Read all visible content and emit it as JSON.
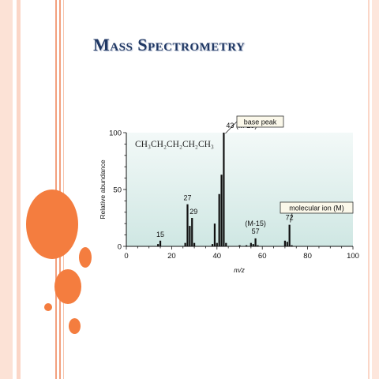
{
  "slide": {
    "title": "Mass Spectrometry",
    "accent_color": "#f47d3f",
    "title_color": "#1f3763"
  },
  "chart_data": {
    "type": "bar",
    "title": "",
    "xlabel": "m/z",
    "ylabel": "Relative abundance",
    "xlim": [
      0,
      100
    ],
    "ylim": [
      0,
      100
    ],
    "x_ticks": [
      0,
      20,
      40,
      60,
      80,
      100
    ],
    "y_ticks": [
      0,
      50,
      100
    ],
    "grid": false,
    "molecule_label": "CH₃CH₂CH₂CH₂CH₃",
    "series": [
      {
        "x": [
          14,
          15,
          26,
          27,
          28,
          29,
          30,
          38,
          39,
          40,
          41,
          42,
          43,
          44,
          50,
          53,
          55,
          56,
          57,
          58,
          70,
          71,
          72,
          73
        ],
        "y": [
          2,
          5,
          3,
          37,
          18,
          25,
          3,
          2,
          20,
          3,
          46,
          63,
          100,
          3,
          1,
          1,
          3,
          2,
          7,
          1,
          5,
          4,
          19,
          1
        ]
      }
    ],
    "peak_labels": [
      {
        "x": 15,
        "y": 5,
        "text": "15"
      },
      {
        "x": 27,
        "y": 37,
        "text": "27"
      },
      {
        "x": 29,
        "y": 25,
        "text": "29"
      },
      {
        "x": 43,
        "y": 100,
        "text": "43 (M-29)"
      },
      {
        "x": 57,
        "y": 7,
        "text": "57"
      },
      {
        "x": 57,
        "y": 7,
        "text": "(M-15)"
      },
      {
        "x": 72,
        "y": 19,
        "text": "72"
      }
    ],
    "callouts": [
      {
        "x": 43,
        "y": 100,
        "text": "base peak"
      },
      {
        "x": 72,
        "y": 19,
        "text": "molecular ion (M)"
      }
    ],
    "colors": {
      "plot_bg_top": "#f3f9f8",
      "plot_bg_bottom": "#cfe7e3",
      "bars": "#111111",
      "callout_bg": "#fbf8ea"
    }
  }
}
